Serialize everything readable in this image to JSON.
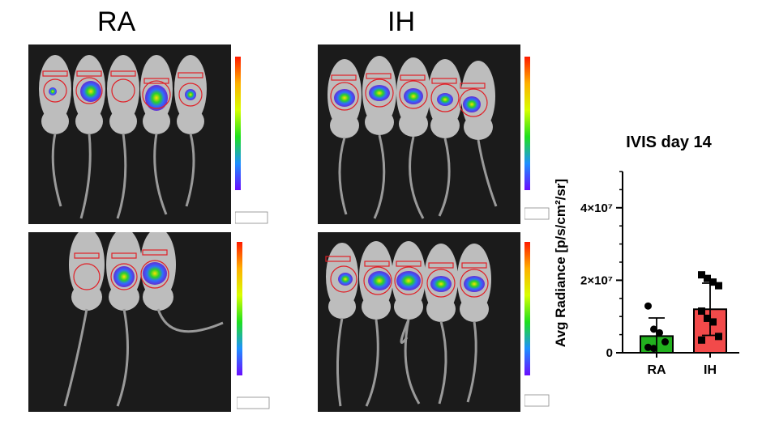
{
  "group_labels": {
    "ra": "RA",
    "ih": "IH"
  },
  "panels": {
    "ra_top": {
      "mice": 5
    },
    "ra_bottom": {
      "mice": 3
    },
    "ih_top": {
      "mice": 5
    },
    "ih_bottom": {
      "mice": 5
    }
  },
  "colors": {
    "ra_bar": "#22b01e",
    "ih_bar": "#f24a4a",
    "panel_bg": "#1b1b1b",
    "roi": "#e01f26"
  },
  "chart_data": {
    "type": "bar",
    "title": "IVIS day 14",
    "ylabel": "Avg Radiance [p/s/cm²/sr]",
    "categories": [
      "RA",
      "IH"
    ],
    "values": [
      4600000,
      12000000
    ],
    "error": [
      5000000,
      7200000
    ],
    "ylim": [
      0,
      50000000
    ],
    "yticks": [
      {
        "value": 0,
        "label": "0"
      },
      {
        "value": 20000000,
        "label": "2×10⁷"
      },
      {
        "value": 40000000,
        "label": "4×10⁷"
      }
    ],
    "points": {
      "RA": [
        12900000,
        6500000,
        5500000,
        3000000,
        1500000,
        1200000
      ],
      "IH": [
        21500000,
        20500000,
        19500000,
        18500000,
        11500000,
        9500000,
        8500000,
        4500000,
        3500000
      ]
    }
  }
}
